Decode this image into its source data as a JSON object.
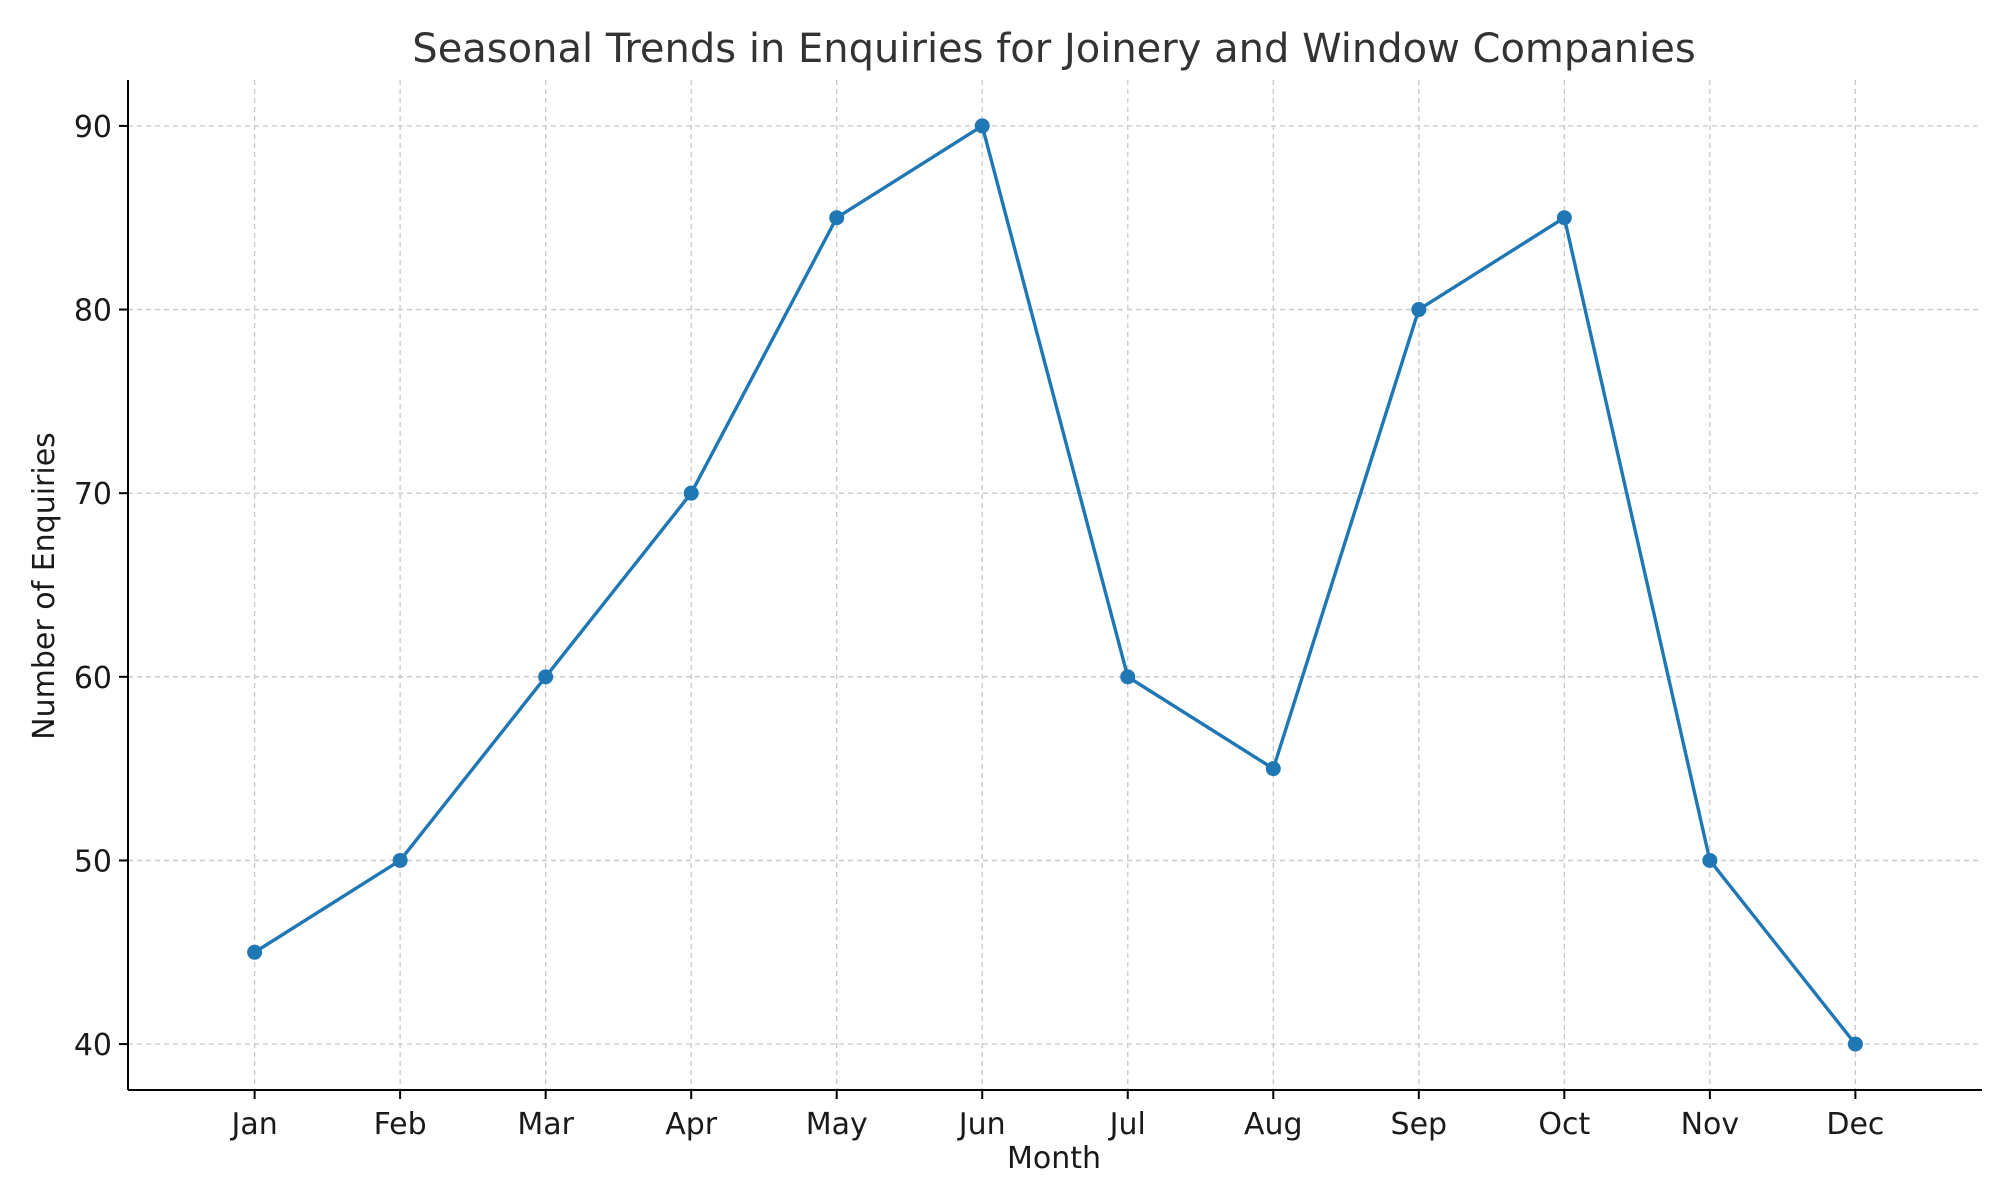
{
  "chart_data": {
    "type": "line",
    "title": "Seasonal Trends in Enquiries for Joinery and Window Companies",
    "xlabel": "Month",
    "ylabel": "Number of Enquiries",
    "categories": [
      "Jan",
      "Feb",
      "Mar",
      "Apr",
      "May",
      "Jun",
      "Jul",
      "Aug",
      "Sep",
      "Oct",
      "Nov",
      "Dec"
    ],
    "series": [
      {
        "values": [
          45,
          50,
          60,
          70,
          85,
          90,
          60,
          55,
          80,
          85,
          50,
          40
        ],
        "color": "#1f77b4",
        "marker": "circle"
      }
    ],
    "ylim": [
      37.5,
      92.5
    ],
    "yticks": [
      40,
      50,
      60,
      70,
      80,
      90
    ],
    "grid": true
  }
}
